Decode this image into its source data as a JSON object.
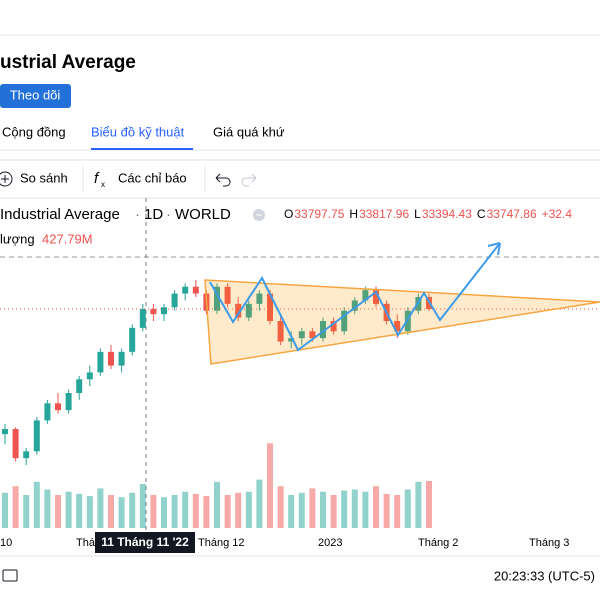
{
  "header": {
    "title": "ustrial Average",
    "follow_button": "Theo dõi"
  },
  "tabs": [
    "Cộng đồng",
    "Biểu đồ kỹ thuật",
    "Giá quá khứ"
  ],
  "toolbar": {
    "compare": "So sánh",
    "indicators": "Các chỉ báo"
  },
  "legend": {
    "symbol": "Industrial Average",
    "interval": "1D",
    "exchange": "WORLD",
    "ohlc": [
      {
        "key": "O",
        "value": "33797.75"
      },
      {
        "key": "H",
        "value": "33817.96"
      },
      {
        "key": "L",
        "value": "33394.43"
      },
      {
        "key": "C",
        "value": "33747.86"
      }
    ],
    "change": "+32.4",
    "volume_label": "lượng",
    "volume_value": "427.79M"
  },
  "time_axis": [
    "10",
    "Tháng",
    "Tháng 12",
    "2023",
    "Tháng 2",
    "Tháng 3"
  ],
  "crosshair_label": "11 Tháng 11 '22",
  "footer": {
    "time": "20:23:33 (UTC-5)"
  },
  "chart_data": {
    "type": "candlestick",
    "open": [
      30100,
      30250,
      29400,
      29600,
      30500,
      31000,
      30800,
      31300,
      31700,
      31900,
      32500,
      32100,
      32500,
      33200,
      33750,
      33600,
      33800,
      34200,
      34400,
      34200,
      33700,
      34400,
      33900,
      33500,
      33900,
      34200,
      33400,
      32800,
      32900,
      33100,
      32900,
      33400,
      33100,
      33700,
      34000,
      34300,
      33900,
      33400,
      33100,
      33700,
      34100
    ],
    "high": [
      30400,
      30300,
      29700,
      30600,
      31100,
      31300,
      31400,
      31800,
      32100,
      32600,
      32700,
      32600,
      33300,
      33900,
      33900,
      33900,
      34300,
      34500,
      34600,
      34300,
      34500,
      34500,
      34100,
      34000,
      34300,
      34300,
      33600,
      33100,
      33200,
      33200,
      33500,
      33500,
      33800,
      34100,
      34400,
      34400,
      34000,
      33600,
      33800,
      34200,
      34200
    ],
    "low": [
      29800,
      29300,
      29200,
      29500,
      30400,
      30700,
      30700,
      31100,
      31500,
      31800,
      32000,
      31900,
      32400,
      33100,
      33400,
      33400,
      33700,
      34000,
      34100,
      33600,
      33600,
      33800,
      33400,
      33400,
      33700,
      33300,
      32700,
      32600,
      32700,
      32800,
      32800,
      33000,
      33000,
      33600,
      33900,
      33800,
      33300,
      32900,
      33000,
      33600,
      33700
    ],
    "close": [
      30250,
      29400,
      29600,
      30500,
      31000,
      30800,
      31300,
      31700,
      31900,
      32500,
      32100,
      32500,
      33200,
      33750,
      33600,
      33800,
      34200,
      34400,
      34200,
      33700,
      34400,
      33900,
      33500,
      33900,
      34200,
      33400,
      32800,
      32900,
      33100,
      32900,
      33400,
      33100,
      33700,
      34000,
      34300,
      33900,
      33400,
      33100,
      33700,
      34100,
      33750
    ],
    "volume": [
      320,
      380,
      300,
      420,
      350,
      300,
      330,
      310,
      290,
      360,
      300,
      280,
      320,
      400,
      300,
      280,
      300,
      330,
      310,
      290,
      420,
      300,
      320,
      330,
      440,
      770,
      380,
      300,
      320,
      360,
      330,
      300,
      340,
      350,
      330,
      380,
      310,
      300,
      350,
      420,
      427.79
    ],
    "ylim": [
      28500,
      35500
    ],
    "vlim": [
      0,
      1000
    ],
    "up_color": "#26a69a",
    "down_color": "#ef5350"
  }
}
